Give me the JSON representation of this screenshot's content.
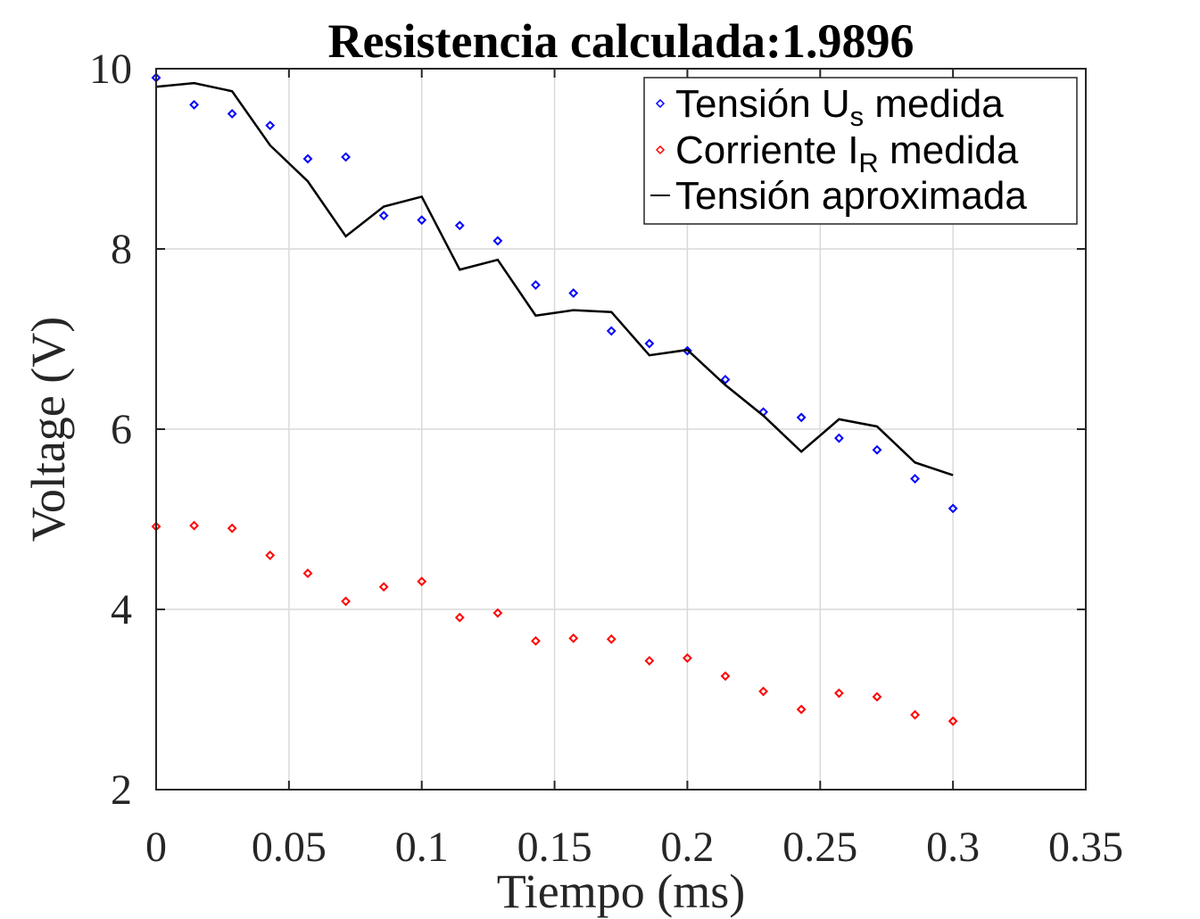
{
  "chart_data": {
    "type": "scatter",
    "title": "Resistencia calculada:1.9896",
    "xlabel": "Tiempo (ms)",
    "ylabel": "Voltage (V)",
    "xlim": [
      0,
      0.35
    ],
    "ylim": [
      2,
      10
    ],
    "xticks": [
      "0",
      "0.05",
      "0.1",
      "0.15",
      "0.2",
      "0.25",
      "0.3",
      "0.35"
    ],
    "yticks": [
      "2",
      "4",
      "6",
      "8",
      "10"
    ],
    "grid": true,
    "legend_position": "top-right",
    "x": [
      0,
      0.0143,
      0.0286,
      0.0429,
      0.0571,
      0.0714,
      0.0857,
      0.1,
      0.1143,
      0.1286,
      0.1429,
      0.1571,
      0.1714,
      0.1857,
      0.2,
      0.2143,
      0.2286,
      0.2429,
      0.2571,
      0.2714,
      0.2857,
      0.3
    ],
    "series": [
      {
        "name": "Tensión U_s medida",
        "legend": {
          "main": "Tensión U",
          "sub": "s",
          "rest": " medida"
        },
        "style": "diamond-markers",
        "color": "#0000ff",
        "values": [
          9.9,
          9.6,
          9.5,
          9.37,
          9.0,
          9.02,
          8.37,
          8.32,
          8.26,
          8.09,
          7.6,
          7.51,
          7.09,
          6.95,
          6.87,
          6.55,
          6.19,
          6.13,
          5.9,
          5.77,
          5.45,
          5.12
        ]
      },
      {
        "name": "Corriente I_R medida",
        "legend": {
          "main": "Corriente I",
          "sub": "R",
          "rest": " medida"
        },
        "style": "diamond-markers",
        "color": "#ff0000",
        "values": [
          4.92,
          4.93,
          4.9,
          4.6,
          4.4,
          4.09,
          4.25,
          4.31,
          3.91,
          3.96,
          3.65,
          3.68,
          3.67,
          3.43,
          3.46,
          3.26,
          3.09,
          2.89,
          3.07,
          3.03,
          2.83,
          2.76
        ]
      },
      {
        "name": "Tensión aproximada",
        "legend": {
          "main": "Tensión aproximada",
          "sub": "",
          "rest": ""
        },
        "style": "line",
        "color": "#000000",
        "values": [
          9.8,
          9.84,
          9.75,
          9.15,
          8.75,
          8.14,
          8.47,
          8.58,
          7.77,
          7.88,
          7.26,
          7.32,
          7.3,
          6.82,
          6.88,
          6.49,
          6.15,
          5.75,
          6.11,
          6.03,
          5.63,
          5.49
        ]
      }
    ]
  }
}
